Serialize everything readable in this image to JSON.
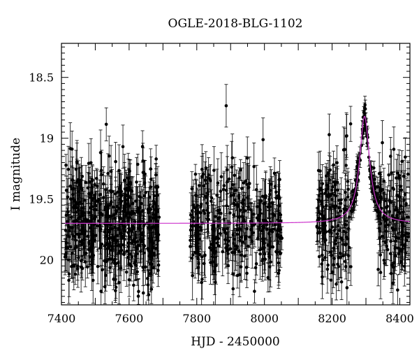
{
  "chart_data": {
    "type": "scatter",
    "title": "OGLE-2018-BLG-1102",
    "xlabel": "HJD - 2450000",
    "ylabel": "I magnitude",
    "xlim": [
      7400,
      8430
    ],
    "ylim": [
      20.37,
      18.22
    ],
    "y_inverted": true,
    "xticks": [
      7400,
      7600,
      7800,
      8000,
      8200,
      8400
    ],
    "yticks": [
      18.5,
      19,
      19.5,
      20
    ],
    "ytick_labels": [
      "18.5",
      "19",
      "19.5",
      "20"
    ],
    "baseline_magnitude": 19.7,
    "peak": {
      "x": 8296,
      "y": 18.82
    },
    "fit_color": "#cc33cc",
    "point_color": "#000000",
    "observing_seasons": [
      {
        "x_start": 7410,
        "x_end": 7690
      },
      {
        "x_start": 7780,
        "x_end": 8055
      },
      {
        "x_start": 8155,
        "x_end": 8425
      }
    ],
    "series": [
      {
        "kind": "points_with_errorbars"
      },
      {
        "kind": "model_curve"
      }
    ]
  }
}
